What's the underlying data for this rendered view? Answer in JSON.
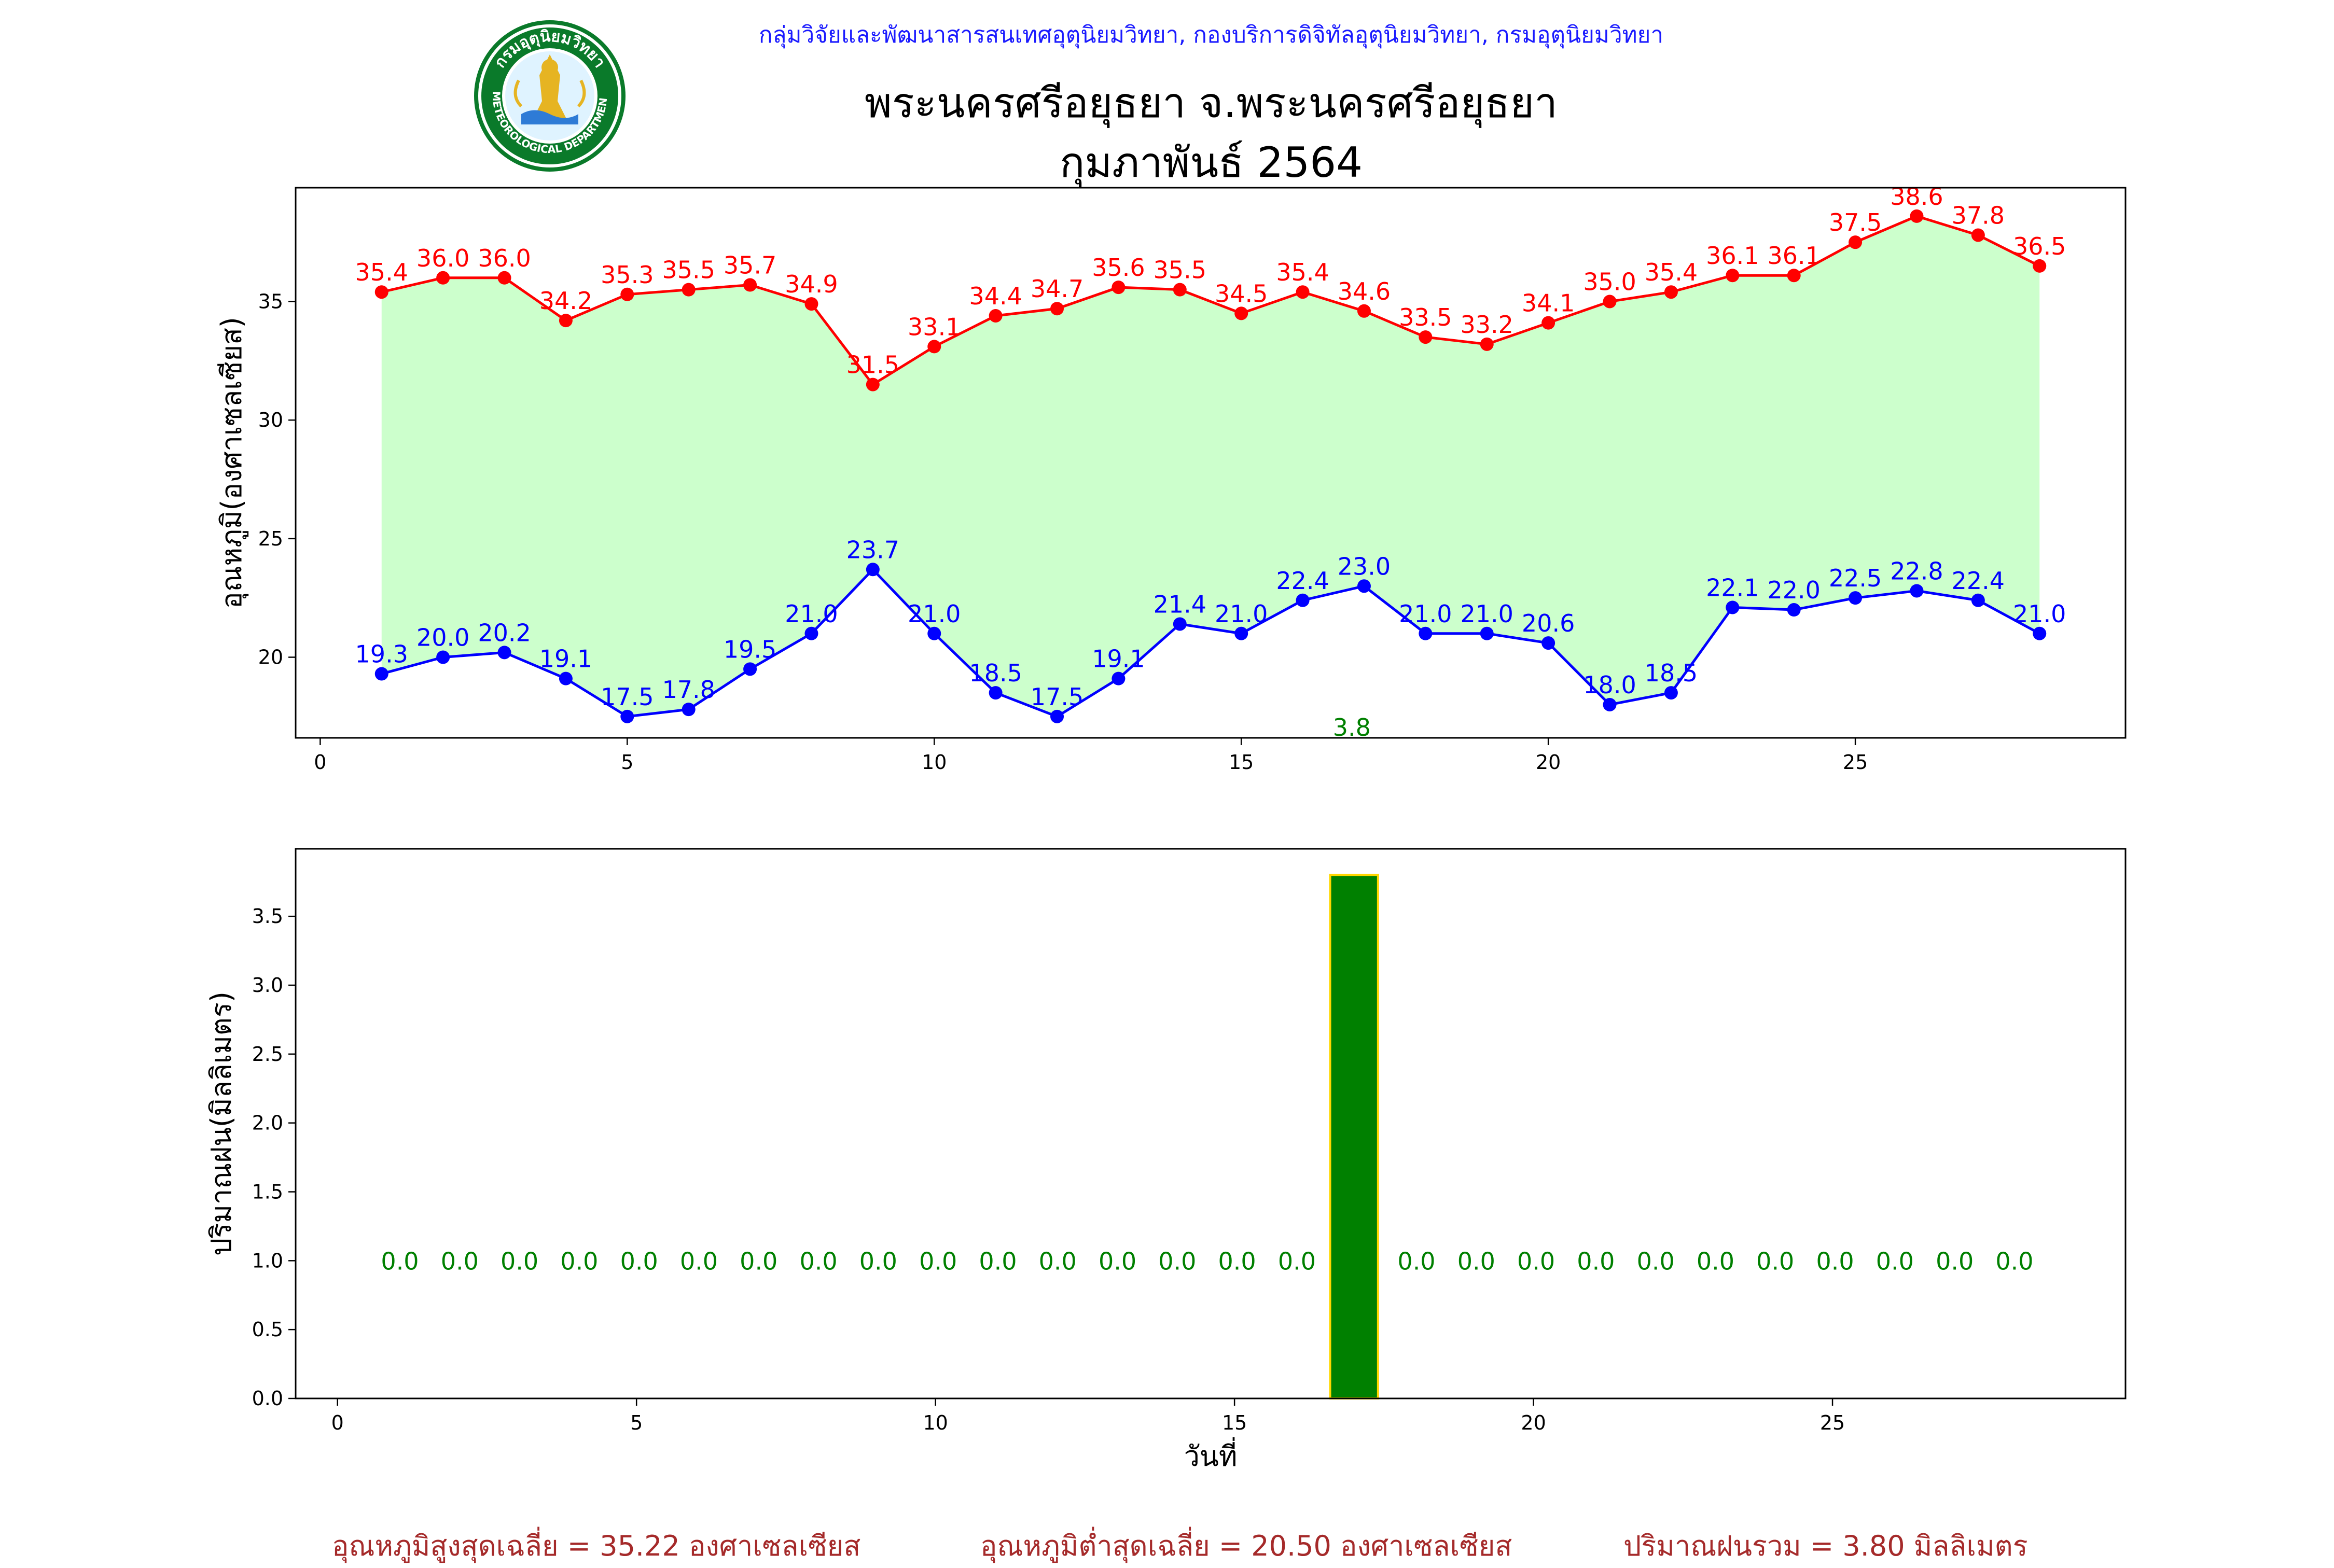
{
  "header": {
    "organization": "กลุ่มวิจัยและพัฒนาสารสนเทศอุตุนิยมวิทยา, กองบริการดิจิทัลอุตุนิยมวิทยา, กรมอุตุนิยมวิทยา",
    "title_line1": "พระนครศรีอยุธยา จ.พระนครศรีอยุธยา",
    "title_line2": "กุมภาพันธ์ 2564",
    "logo_text_top": "กรมอุตุนิยมวิทยา",
    "logo_text_bottom": "METEOROLOGICAL DEPARTMENT"
  },
  "colors": {
    "max_line": "#ff0000",
    "min_line": "#0000ff",
    "fill": "#ccffcc",
    "rain_bar": "#008000",
    "rain_edge": "#ffd700",
    "rain_label": "#008000",
    "footer": "#a52a2a"
  },
  "chart_data": [
    {
      "type": "line",
      "ylabel": "อุณหภูมิ(องศาเซลเซียส)",
      "xlabel": "",
      "xlim": [
        -0.4,
        29.4
      ],
      "ylim": [
        16.6,
        39.8
      ],
      "xticks": [
        0,
        5,
        10,
        15,
        20,
        25
      ],
      "yticks": [
        20,
        25,
        30,
        35
      ],
      "x": [
        1,
        2,
        3,
        4,
        5,
        6,
        7,
        8,
        9,
        10,
        11,
        12,
        13,
        14,
        15,
        16,
        17,
        18,
        19,
        20,
        21,
        22,
        23,
        24,
        25,
        26,
        27,
        28
      ],
      "series": [
        {
          "key": "max",
          "values": [
            35.4,
            36.0,
            36.0,
            34.2,
            35.3,
            35.5,
            35.7,
            34.9,
            31.5,
            33.1,
            34.4,
            34.7,
            35.6,
            35.5,
            34.5,
            35.4,
            34.6,
            33.5,
            33.2,
            34.1,
            35.0,
            35.4,
            36.1,
            36.1,
            37.5,
            38.6,
            37.8,
            36.5
          ]
        },
        {
          "key": "min",
          "values": [
            19.3,
            20.0,
            20.2,
            19.1,
            17.5,
            17.8,
            19.5,
            21.0,
            23.7,
            21.0,
            18.5,
            17.5,
            19.1,
            21.4,
            21.0,
            22.4,
            23.0,
            21.0,
            21.0,
            20.6,
            18.0,
            18.5,
            22.1,
            22.0,
            22.5,
            22.8,
            22.4,
            21.0
          ]
        }
      ],
      "annotation": {
        "x": 16.8,
        "y": 16.6,
        "text": "3.8"
      },
      "grid": false
    },
    {
      "type": "bar",
      "ylabel": "ปริมาณฝน(มิลลิเมตร)",
      "xlabel": "วันที่",
      "xlim": [
        -0.7,
        29.9
      ],
      "ylim": [
        0,
        3.99
      ],
      "xticks": [
        0,
        5,
        10,
        15,
        20,
        25
      ],
      "yticks": [
        0.0,
        0.5,
        1.0,
        1.5,
        2.0,
        2.5,
        3.0,
        3.5
      ],
      "x": [
        1,
        2,
        3,
        4,
        5,
        6,
        7,
        8,
        9,
        10,
        11,
        12,
        13,
        14,
        15,
        16,
        17,
        18,
        19,
        20,
        21,
        22,
        23,
        24,
        25,
        26,
        27,
        28
      ],
      "values": [
        0.0,
        0.0,
        0.0,
        0.0,
        0.0,
        0.0,
        0.0,
        0.0,
        0.0,
        0.0,
        0.0,
        0.0,
        0.0,
        0.0,
        0.0,
        0.0,
        3.8,
        0.0,
        0.0,
        0.0,
        0.0,
        0.0,
        0.0,
        0.0,
        0.0,
        0.0,
        0.0,
        0.0
      ],
      "zero_label_y": 1.0,
      "grid": false
    }
  ],
  "footer": {
    "avg_max": "อุณหภูมิสูงสุดเฉลี่ย = 35.22 องศาเซลเซียส",
    "avg_min": "อุณหภูมิต่ำสุดเฉลี่ย = 20.50 องศาเซลเซียส",
    "total_rain": "ปริมาณฝนรวม = 3.80 มิลลิเมตร"
  }
}
